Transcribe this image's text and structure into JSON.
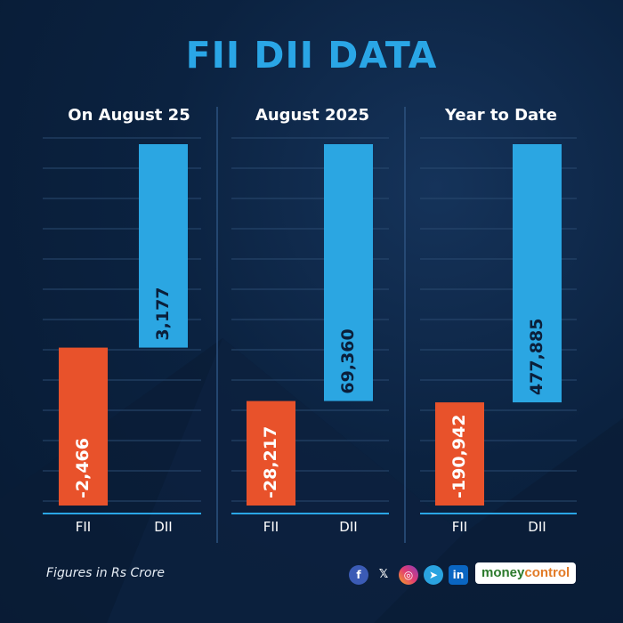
{
  "title": "FII DII DATA",
  "colors": {
    "fii": "#e8522b",
    "dii": "#2ba6e2",
    "title": "#2aa6e6",
    "background": "#0b2240"
  },
  "chart_data": [
    {
      "type": "bar",
      "title": "On August 25",
      "categories": [
        "FII",
        "DII"
      ],
      "values": [
        -2466,
        3177
      ],
      "value_labels": [
        "-2,466",
        "3,177"
      ],
      "layout": "waterfall"
    },
    {
      "type": "bar",
      "title": "August 2025",
      "categories": [
        "FII",
        "DII"
      ],
      "values": [
        -28217,
        69360
      ],
      "value_labels": [
        "-28,217",
        "69,360"
      ],
      "layout": "waterfall"
    },
    {
      "type": "bar",
      "title": "Year to Date",
      "categories": [
        "FII",
        "DII"
      ],
      "values": [
        -190942,
        477885
      ],
      "value_labels": [
        "-190,942",
        "477,885"
      ],
      "layout": "waterfall"
    }
  ],
  "footer": {
    "note": "Figures in Rs Crore",
    "social_icons": [
      "facebook-icon",
      "x-icon",
      "instagram-icon",
      "telegram-icon",
      "linkedin-icon"
    ],
    "brand_part1": "money",
    "brand_part2": "control"
  }
}
